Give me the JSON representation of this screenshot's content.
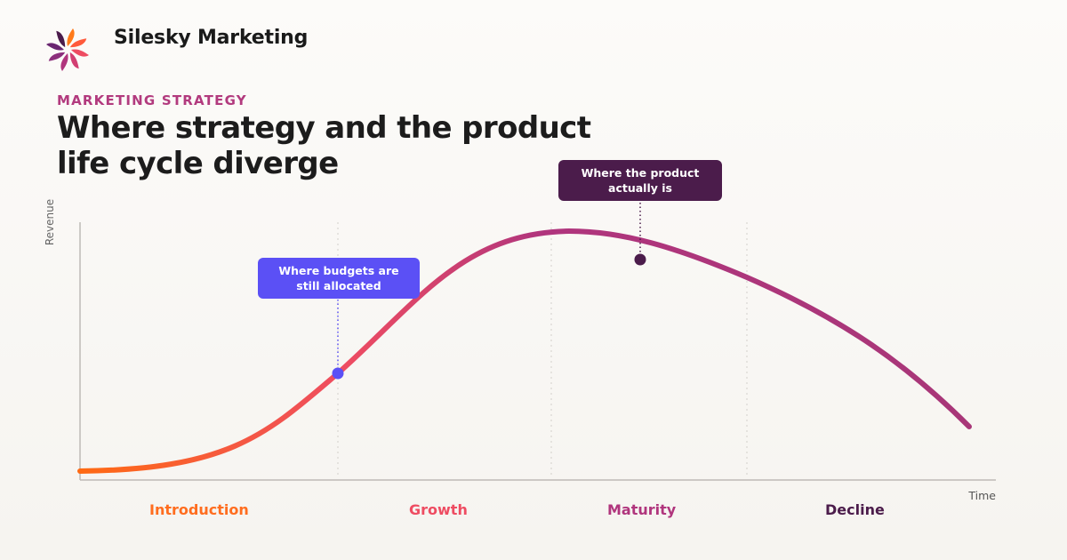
{
  "brand": {
    "name": "Silesky Marketing",
    "logo_icon": "pinwheel-icon"
  },
  "header": {
    "eyebrow": "MARKETING STRATEGY",
    "title": "Where strategy and the product life cycle diverge"
  },
  "chart_data": {
    "type": "line",
    "xlabel": "Time",
    "ylabel": "Revenue",
    "stages": [
      {
        "label": "Introduction",
        "color": "#ff6d1f"
      },
      {
        "label": "Growth",
        "color": "#ee4c62"
      },
      {
        "label": "Maturity",
        "color": "#b0357d"
      },
      {
        "label": "Decline",
        "color": "#4b1c4b"
      }
    ],
    "annotations": [
      {
        "id": "budget",
        "text": "Where budgets are still allocated",
        "color": "#5b50f5"
      },
      {
        "id": "product",
        "text": "Where the product actually is",
        "color": "#4b1c4b"
      }
    ],
    "curve_gradient": [
      "#ff6a13",
      "#ee4c62",
      "#b0357d",
      "#a83678"
    ],
    "grid": "dotted stage dividers"
  }
}
